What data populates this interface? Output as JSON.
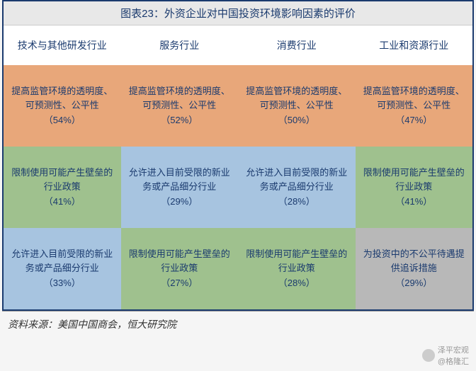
{
  "title": "图表23：外资企业对中国投资环境影响因素的评价",
  "columns": [
    "技术与其他研发行业",
    "服务行业",
    "消费行业",
    "工业和资源行业"
  ],
  "rows": [
    [
      {
        "text": "提高监管环境的透明度、可预测性、公平性",
        "pct": "（54%）",
        "bg": "#e8a77a"
      },
      {
        "text": "提高监管环境的透明度、可预测性、公平性",
        "pct": "（52%）",
        "bg": "#e8a77a"
      },
      {
        "text": "提高监管环境的透明度、可预测性、公平性",
        "pct": "（50%）",
        "bg": "#e8a77a"
      },
      {
        "text": "提高监管环境的透明度、可预测性、公平性",
        "pct": "（47%）",
        "bg": "#e8a77a"
      }
    ],
    [
      {
        "text": "限制使用可能产生壁垒的行业政策",
        "pct": "（41%）",
        "bg": "#9fc18e"
      },
      {
        "text": "允许进入目前受限的新业务或产品细分行业",
        "pct": "（29%）",
        "bg": "#a7c4e0"
      },
      {
        "text": "允许进入目前受限的新业务或产品细分行业",
        "pct": "（28%）",
        "bg": "#a7c4e0"
      },
      {
        "text": "限制使用可能产生壁垒的行业政策",
        "pct": "（41%）",
        "bg": "#9fc18e"
      }
    ],
    [
      {
        "text": "允许进入目前受限的新业务或产品细分行业",
        "pct": "（33%）",
        "bg": "#a7c4e0"
      },
      {
        "text": "限制使用可能产生壁垒的行业政策",
        "pct": "（27%）",
        "bg": "#9fc18e"
      },
      {
        "text": "限制使用可能产生壁垒的行业政策",
        "pct": "（28%）",
        "bg": "#9fc18e"
      },
      {
        "text": "为投资中的不公平待遇提供追诉措施",
        "pct": "（29%）",
        "bg": "#b8b8b8"
      }
    ]
  ],
  "source": "资料来源：美国中国商会，恒大研究院",
  "watermark": {
    "line1": "泽平宏观",
    "line2": "@格隆汇"
  },
  "colors": {
    "border": "#1a3a6e",
    "title_bg": "#e8e8e8",
    "text": "#1a3a6e"
  }
}
